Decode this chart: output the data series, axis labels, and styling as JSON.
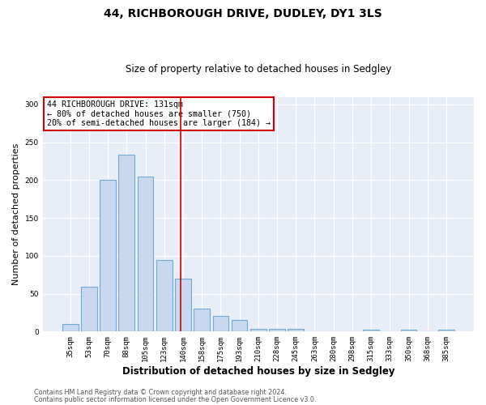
{
  "title": "44, RICHBOROUGH DRIVE, DUDLEY, DY1 3LS",
  "subtitle": "Size of property relative to detached houses in Sedgley",
  "xlabel": "Distribution of detached houses by size in Sedgley",
  "ylabel": "Number of detached properties",
  "categories": [
    "35sqm",
    "53sqm",
    "70sqm",
    "88sqm",
    "105sqm",
    "123sqm",
    "140sqm",
    "158sqm",
    "175sqm",
    "193sqm",
    "210sqm",
    "228sqm",
    "245sqm",
    "263sqm",
    "280sqm",
    "298sqm",
    "315sqm",
    "333sqm",
    "350sqm",
    "368sqm",
    "385sqm"
  ],
  "values": [
    10,
    59,
    200,
    234,
    205,
    94,
    70,
    30,
    21,
    15,
    4,
    4,
    4,
    0,
    0,
    0,
    3,
    0,
    3,
    0,
    3
  ],
  "bar_color": "#c8d8ee",
  "bar_edge_color": "#6daad4",
  "plot_bg_color": "#e8eef8",
  "fig_bg_color": "#ffffff",
  "vline_x": 5.85,
  "vline_color": "#cc0000",
  "annotation_text": "44 RICHBOROUGH DRIVE: 131sqm\n← 80% of detached houses are smaller (750)\n20% of semi-detached houses are larger (184) →",
  "annotation_box_color": "white",
  "annotation_box_edge_color": "#cc0000",
  "footer_line1": "Contains HM Land Registry data © Crown copyright and database right 2024.",
  "footer_line2": "Contains public sector information licensed under the Open Government Licence v3.0.",
  "ylim": [
    0,
    310
  ],
  "yticks": [
    0,
    50,
    100,
    150,
    200,
    250,
    300
  ]
}
